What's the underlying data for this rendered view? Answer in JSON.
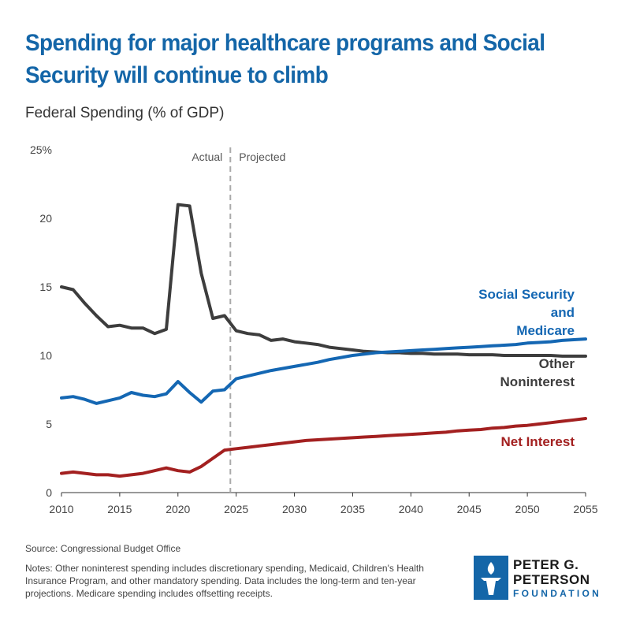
{
  "header": {
    "title_line1": "Spending for major healthcare programs and Social",
    "title_line2": "Security will continue to climb",
    "subtitle": "Federal Spending (% of GDP)"
  },
  "colors": {
    "title": "#1466a8",
    "social_security_medicare": "#1467b3",
    "other_noninterest": "#3d3d3d",
    "net_interest": "#a32020",
    "divider": "#aaaaaa",
    "logo_text": "#1a1a1a",
    "logo_mark": "#1466a8"
  },
  "chart_data": {
    "type": "line",
    "xlim": [
      2010,
      2055
    ],
    "ylim": [
      0,
      25
    ],
    "x_ticks": [
      2010,
      2015,
      2020,
      2025,
      2030,
      2035,
      2040,
      2045,
      2050,
      2055
    ],
    "x_tick_labels": [
      "2010",
      "2015",
      "2020",
      "2025",
      "2030",
      "2035",
      "2040",
      "2045",
      "2050",
      "2055"
    ],
    "y_ticks": [
      0,
      5,
      10,
      15,
      20,
      25
    ],
    "y_tick_labels": [
      "0",
      "5",
      "10",
      "15",
      "20",
      "25%"
    ],
    "grid": false,
    "divider_x": 2024.5,
    "region_labels": {
      "left": "Actual",
      "right": "Projected"
    },
    "x": [
      2010,
      2011,
      2012,
      2013,
      2014,
      2015,
      2016,
      2017,
      2018,
      2019,
      2020,
      2021,
      2022,
      2023,
      2024,
      2025,
      2026,
      2027,
      2028,
      2029,
      2030,
      2031,
      2032,
      2033,
      2034,
      2035,
      2036,
      2037,
      2038,
      2039,
      2040,
      2041,
      2042,
      2043,
      2044,
      2045,
      2046,
      2047,
      2048,
      2049,
      2050,
      2051,
      2052,
      2053,
      2054,
      2055
    ],
    "series": [
      {
        "key": "other_noninterest",
        "label_lines": [
          "Other",
          "Noninterest"
        ],
        "values": [
          15.0,
          14.8,
          13.8,
          12.9,
          12.1,
          12.2,
          12.0,
          12.0,
          11.6,
          11.9,
          21.0,
          20.9,
          16.0,
          12.7,
          12.9,
          11.8,
          11.6,
          11.5,
          11.1,
          11.2,
          11.0,
          10.9,
          10.8,
          10.6,
          10.5,
          10.4,
          10.3,
          10.25,
          10.2,
          10.2,
          10.15,
          10.15,
          10.1,
          10.1,
          10.1,
          10.05,
          10.05,
          10.05,
          10.0,
          10.0,
          10.0,
          10.0,
          10.0,
          9.95,
          9.95,
          9.95
        ]
      },
      {
        "key": "social_security_medicare",
        "label_lines": [
          "Social Security",
          "and",
          "Medicare"
        ],
        "values": [
          6.9,
          7.0,
          6.8,
          6.5,
          6.7,
          6.9,
          7.3,
          7.1,
          7.0,
          7.2,
          8.1,
          7.3,
          6.6,
          7.4,
          7.5,
          8.3,
          8.5,
          8.7,
          8.9,
          9.05,
          9.2,
          9.35,
          9.5,
          9.7,
          9.85,
          10.0,
          10.1,
          10.2,
          10.25,
          10.3,
          10.35,
          10.4,
          10.45,
          10.5,
          10.55,
          10.6,
          10.65,
          10.7,
          10.75,
          10.8,
          10.9,
          10.95,
          11.0,
          11.1,
          11.15,
          11.2
        ]
      },
      {
        "key": "net_interest",
        "label_lines": [
          "Net Interest"
        ],
        "values": [
          1.4,
          1.5,
          1.4,
          1.3,
          1.3,
          1.2,
          1.3,
          1.4,
          1.6,
          1.8,
          1.6,
          1.5,
          1.9,
          2.5,
          3.1,
          3.2,
          3.3,
          3.4,
          3.5,
          3.6,
          3.7,
          3.8,
          3.85,
          3.9,
          3.95,
          4.0,
          4.05,
          4.1,
          4.15,
          4.2,
          4.25,
          4.3,
          4.35,
          4.4,
          4.5,
          4.55,
          4.6,
          4.7,
          4.75,
          4.85,
          4.9,
          5.0,
          5.1,
          5.2,
          5.3,
          5.4
        ]
      }
    ]
  },
  "footer": {
    "source": "Source: Congressional Budget Office",
    "notes": "Notes: Other noninterest spending includes discretionary spending, Medicaid, Children's Health Insurance Program, and other mandatory spending. Data includes the long-term and ten-year projections. Medicare spending includes offsetting receipts."
  },
  "logo": {
    "line1": "PETER G.",
    "line2": "PETERSON",
    "line3": "FOUNDATION",
    "mark_icon": "torch-icon"
  }
}
